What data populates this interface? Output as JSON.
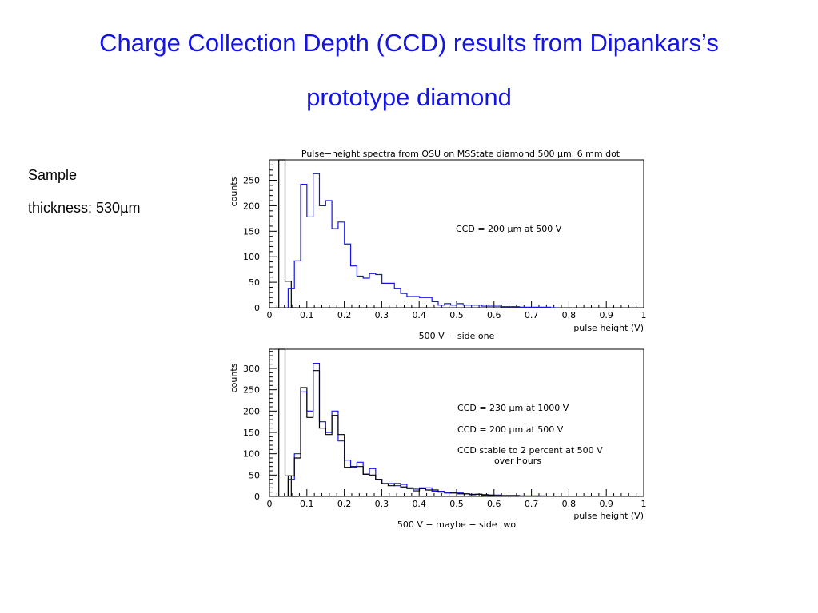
{
  "slide": {
    "title_line1": "Charge Collection Depth (CCD) results from Dipankars’s",
    "title_line2": "prototype diamond",
    "sample_label": "Sample",
    "thickness_label": "thickness: 530µm",
    "title_color": "#1414e6"
  },
  "chart_data": [
    {
      "type": "histogram",
      "title": "Pulse−height spectra from OSU on MSState diamond 500 µm, 6 mm dot",
      "subtitle": "500 V − side one",
      "xlabel": "pulse height (V)",
      "ylabel": "counts",
      "xlim": [
        0,
        1
      ],
      "ylim": [
        0,
        290
      ],
      "xticks": [
        0,
        0.1,
        0.2,
        0.3,
        0.4,
        0.5,
        0.6,
        0.7,
        0.8,
        0.9,
        1
      ],
      "xtick_labels": [
        "0",
        "0.1",
        "0.2",
        "0.3",
        "0.4",
        "0.5",
        "0.6",
        "0.7",
        "0.8",
        "0.9",
        "1"
      ],
      "yticks": [
        0,
        50,
        100,
        150,
        200,
        250
      ],
      "yticklabels": [
        "0",
        "50",
        "100",
        "150",
        "200",
        "250"
      ],
      "bin_width": 0.0167,
      "annotations": [
        "CCD = 200 µm at 500 V"
      ],
      "series": [
        {
          "color": "#000000",
          "x0": 0.025,
          "values": [
            290,
            52,
            0
          ]
        },
        {
          "color": "#1414e6",
          "x0": 0.05,
          "values": [
            38,
            92,
            242,
            178,
            263,
            200,
            210,
            155,
            168,
            125,
            82,
            62,
            58,
            67,
            65,
            48,
            48,
            38,
            28,
            22,
            22,
            20,
            20,
            12,
            5,
            8,
            5,
            8,
            5,
            5,
            5,
            3,
            3,
            3,
            2,
            2,
            2,
            1,
            1,
            1,
            1,
            1,
            0
          ]
        }
      ]
    },
    {
      "type": "histogram",
      "title": "",
      "subtitle": "500 V − maybe − side two",
      "xlabel": "pulse height (V)",
      "ylabel": "counts",
      "xlim": [
        0,
        1
      ],
      "ylim": [
        0,
        345
      ],
      "xticks": [
        0,
        0.1,
        0.2,
        0.3,
        0.4,
        0.5,
        0.6,
        0.7,
        0.8,
        0.9,
        1
      ],
      "xtick_labels": [
        "0",
        "0.1",
        "0.2",
        "0.3",
        "0.4",
        "0.5",
        "0.6",
        "0.7",
        "0.8",
        "0.9",
        "1"
      ],
      "yticks": [
        0,
        50,
        100,
        150,
        200,
        250,
        300
      ],
      "yticklabels": [
        "0",
        "50",
        "100",
        "150",
        "200",
        "250",
        "300"
      ],
      "bin_width": 0.0167,
      "annotations": [
        "CCD = 230 µm at 1000 V",
        "CCD = 200 µm at 500 V",
        "CCD stable to 2 percent at 500 V",
        "over hours"
      ],
      "series": [
        {
          "color": "#000000",
          "x0": 0.025,
          "values": [
            345,
            48,
            0
          ]
        },
        {
          "color": "#1414e6",
          "x0": 0.05,
          "values": [
            40,
            100,
            245,
            200,
            312,
            175,
            150,
            200,
            130,
            85,
            68,
            80,
            52,
            65,
            40,
            30,
            30,
            25,
            28,
            18,
            17,
            20,
            20,
            12,
            12,
            8,
            10,
            8,
            6,
            5,
            5,
            3,
            3,
            3,
            2,
            2,
            2,
            1,
            1,
            1,
            1
          ]
        },
        {
          "color": "#000000",
          "x0": 0.05,
          "values": [
            48,
            90,
            255,
            185,
            295,
            160,
            145,
            190,
            145,
            68,
            70,
            70,
            52,
            50,
            40,
            30,
            25,
            30,
            22,
            20,
            13,
            18,
            15,
            15,
            10,
            10,
            8,
            6,
            6,
            4,
            5,
            4,
            3,
            2,
            2,
            2,
            2,
            1,
            1,
            1,
            1
          ]
        }
      ]
    }
  ]
}
